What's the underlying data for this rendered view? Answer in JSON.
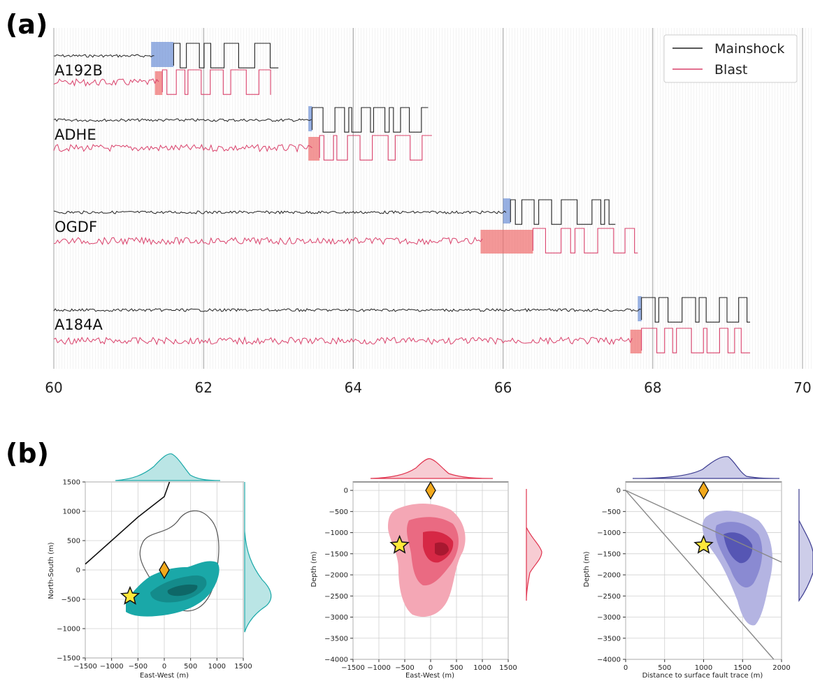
{
  "panel_a": {
    "label": "(a)",
    "chart_data": {
      "type": "line",
      "xlim": [
        60,
        70
      ],
      "xticks": [
        "60",
        "62",
        "64",
        "66",
        "68",
        "70"
      ],
      "grid": true,
      "legend_position": "top-right",
      "series": [
        {
          "name": "Mainshock",
          "color": "#222222"
        },
        {
          "name": "Blast",
          "color": "#d9406a"
        }
      ],
      "stations": [
        {
          "name": "A192B",
          "mainshock_pick": [
            61.3,
            61.6
          ],
          "blast_pick": [
            61.35,
            61.45
          ],
          "mainshock_end": 63.0,
          "blast_end": 62.9
        },
        {
          "name": "ADHE",
          "mainshock_pick": [
            63.4,
            63.45
          ],
          "blast_pick": [
            63.4,
            63.55
          ],
          "mainshock_end": 65.0,
          "blast_end": 65.05
        },
        {
          "name": "OGDF",
          "mainshock_pick": [
            66.0,
            66.1
          ],
          "blast_pick": [
            65.7,
            66.4
          ],
          "mainshock_end": 67.5,
          "blast_end": 67.8
        },
        {
          "name": "A184A",
          "mainshock_pick": [
            67.8,
            67.85
          ],
          "blast_pick": [
            67.7,
            67.85
          ],
          "mainshock_end": 69.3,
          "blast_end": 69.3
        }
      ]
    }
  },
  "panel_b": {
    "label": "(b)",
    "chart_data": [
      {
        "type": "scatter",
        "color": "#1aa8a8",
        "xlabel": "East-West (m)",
        "ylabel": "North-South (m)",
        "xlim": [
          -1500,
          1500
        ],
        "ylim": [
          -1500,
          1500
        ],
        "xticks": [
          "−1500",
          "−1000",
          "−500",
          "0",
          "500",
          "1000",
          "1500"
        ],
        "yticks": [
          "1500",
          "1000",
          "500",
          "0",
          "−500",
          "−1000",
          "−1500"
        ],
        "star": {
          "x": -650,
          "y": -450
        },
        "diamond": {
          "x": 0,
          "y": 0
        },
        "fault_trace": [
          [
            -1500,
            100
          ],
          [
            -1000,
            500
          ],
          [
            -500,
            900
          ],
          [
            0,
            1250
          ],
          [
            100,
            1500
          ]
        ]
      },
      {
        "type": "scatter",
        "color": "#e0334e",
        "xlabel": "East-West (m)",
        "ylabel": "Depth (m)",
        "xlim": [
          -1500,
          1500
        ],
        "ylim": [
          -4000,
          200
        ],
        "xticks": [
          "−1500",
          "−1000",
          "−500",
          "0",
          "500",
          "1000",
          "1500"
        ],
        "yticks": [
          "0",
          "−500",
          "−1000",
          "−1500",
          "−2000",
          "−2500",
          "−3000",
          "−3500",
          "−4000"
        ],
        "star": {
          "x": -600,
          "y": -1300
        },
        "diamond": {
          "x": 0,
          "y": 0
        }
      },
      {
        "type": "scatter",
        "color": "#4f4fb0",
        "xlabel": "Distance to surface fault trace (m)",
        "ylabel": "Depth (m)",
        "xlim": [
          0,
          2000
        ],
        "ylim": [
          -4000,
          200
        ],
        "xticks": [
          "0",
          "500",
          "1000",
          "1500",
          "2000"
        ],
        "yticks": [
          "0",
          "−500",
          "−1000",
          "−1500",
          "−2000",
          "−2500",
          "−3000",
          "−3500",
          "−4000"
        ],
        "star": {
          "x": 1000,
          "y": -1300
        },
        "diamond": {
          "x": 1000,
          "y": 0
        }
      }
    ]
  }
}
